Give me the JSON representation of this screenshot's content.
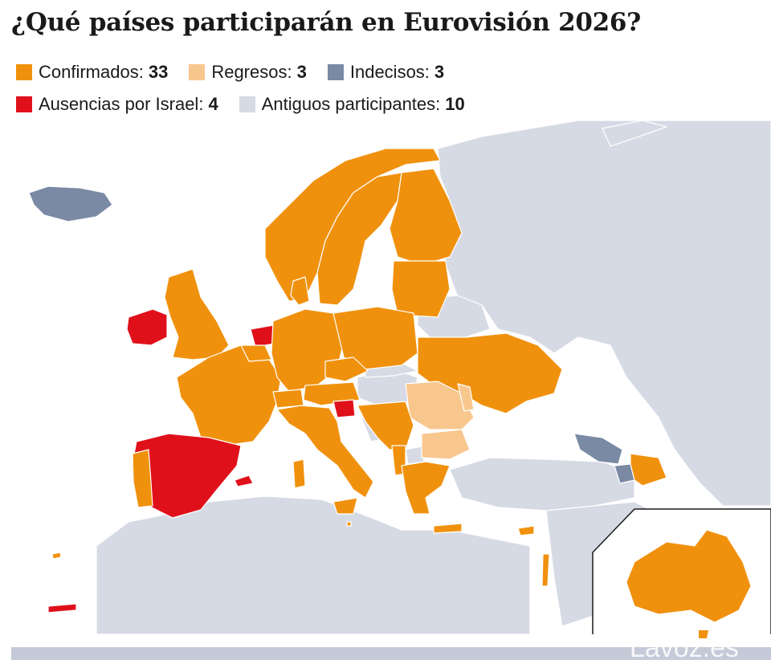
{
  "title": "¿Qué países participarán en Eurovisión 2026?",
  "legend": [
    {
      "label": "Confirmados:",
      "count": "33",
      "color": "#f0910d"
    },
    {
      "label": "Regresos:",
      "count": "3",
      "color": "#f8c78e"
    },
    {
      "label": "Indecisos:",
      "count": "3",
      "color": "#7a8aa5"
    },
    {
      "label": "Ausencias por Israel:",
      "count": "4",
      "color": "#e0101b"
    },
    {
      "label": "Antiguos participantes:",
      "count": "10",
      "color": "#d6dae4"
    }
  ],
  "map_colors": {
    "sea": "#ffffff",
    "non_participant": "#d6dae4",
    "border": "#ffffff"
  },
  "watermark": "Lavoz.es"
}
